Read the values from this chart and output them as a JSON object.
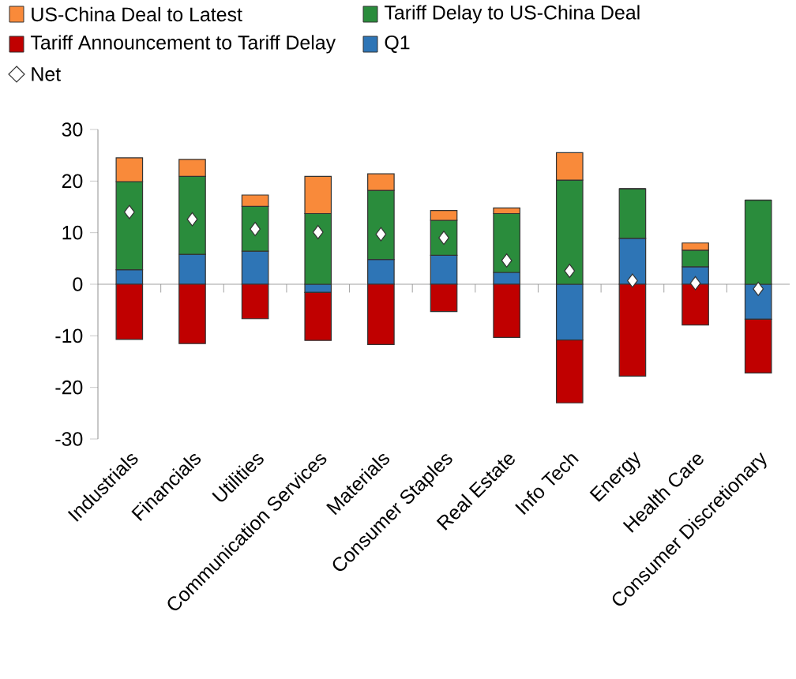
{
  "chart_data": {
    "type": "bar",
    "stacked": true,
    "legend": "top",
    "grid": false,
    "categories": [
      "Industrials",
      "Financials",
      "Utilities",
      "Communication Services",
      "Materials",
      "Consumer Staples",
      "Real Estate",
      "Info Tech",
      "Energy",
      "Health Care",
      "Consumer Discretionary"
    ],
    "series": [
      {
        "name": "Q1",
        "color": "#2e75b6",
        "values": [
          2.8,
          5.8,
          6.4,
          -1.6,
          4.8,
          5.6,
          2.3,
          -10.8,
          8.9,
          3.4,
          -6.8
        ]
      },
      {
        "name": "Tariff Announcement to Tariff Delay",
        "color": "#c00000",
        "values": [
          -10.7,
          -11.5,
          -6.7,
          -9.3,
          -11.7,
          -5.3,
          -10.3,
          -12.2,
          -17.8,
          -7.9,
          -10.4
        ]
      },
      {
        "name": "Tariff Delay to US-China Deal",
        "color": "#2a8c3c",
        "values": [
          17.1,
          15.1,
          8.7,
          13.7,
          13.4,
          6.8,
          11.4,
          20.2,
          9.6,
          3.2,
          16.3
        ]
      },
      {
        "name": "US-China Deal to Latest",
        "color": "#f98a3a",
        "values": [
          4.6,
          3.3,
          2.2,
          7.2,
          3.2,
          1.9,
          1.1,
          5.3,
          0,
          1.4,
          0
        ]
      },
      {
        "name": "Net",
        "type": "scatter",
        "marker": "diamond",
        "color": "#ffffff",
        "values": [
          14.0,
          12.6,
          10.7,
          10.1,
          9.7,
          9.0,
          4.6,
          2.6,
          0.7,
          0.2,
          -0.9
        ]
      }
    ],
    "ref_lines": [
      {
        "axis": "y",
        "value": 0,
        "color": "#8c8c8c"
      }
    ],
    "ylim": [
      -30,
      30
    ],
    "yticks": [
      -30,
      -20,
      -10,
      0,
      10,
      20,
      30
    ]
  }
}
